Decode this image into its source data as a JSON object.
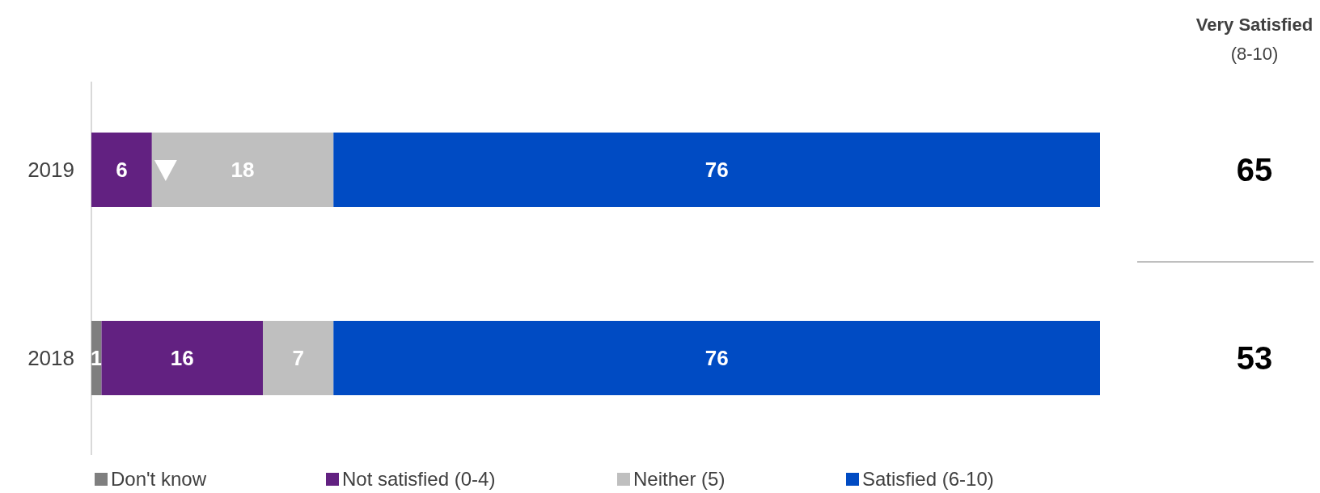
{
  "chart_data": {
    "type": "bar",
    "orientation": "horizontal",
    "stacked": true,
    "categories": [
      "2019",
      "2018"
    ],
    "xlim": [
      0,
      100
    ],
    "tick_labels": "y",
    "data_labels": true,
    "legend": "bottom",
    "series": [
      {
        "name": "Don't know",
        "color": "#7f7f7f",
        "values": [
          null,
          1
        ]
      },
      {
        "name": "Not satisfied (0-4)",
        "color": "#622181",
        "values": [
          6,
          16
        ]
      },
      {
        "name": "Neither (5)",
        "color": "#bfbfbf",
        "values": [
          18,
          7
        ]
      },
      {
        "name": "Satisfied (6-10)",
        "color": "#004bc3",
        "values": [
          76,
          76
        ]
      }
    ],
    "annotations": [
      "Very Satisfied",
      "(8-10)",
      "65",
      "53"
    ]
  }
}
